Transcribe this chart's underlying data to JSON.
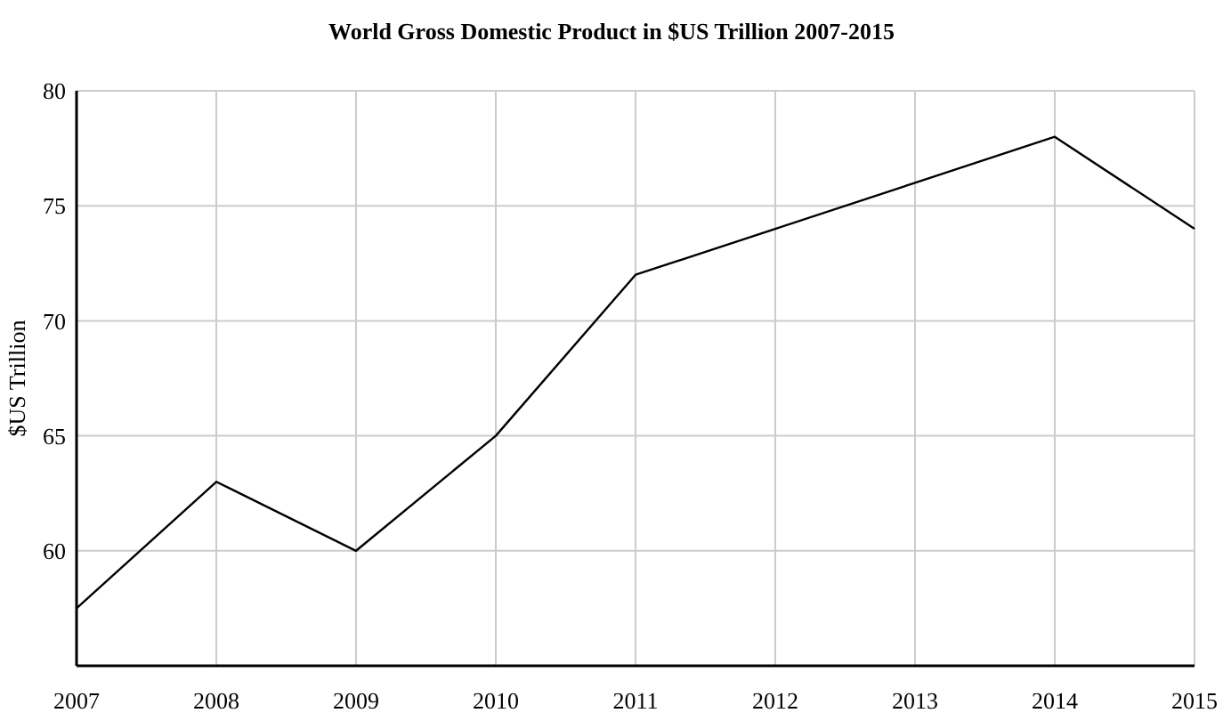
{
  "chart_data": {
    "type": "line",
    "title": "World Gross Domestic Product in $US Trillion 2007-2015",
    "ylabel": "$US Trillion",
    "x": [
      2007,
      2008,
      2009,
      2010,
      2011,
      2012,
      2013,
      2014,
      2015
    ],
    "series": [
      {
        "color": "#000000",
        "values": [
          57.5,
          63,
          60,
          65,
          72,
          74,
          76,
          78,
          74
        ]
      }
    ],
    "xlim": [
      2007,
      2015
    ],
    "xticks": [
      2007,
      2008,
      2009,
      2010,
      2011,
      2012,
      2013,
      2014,
      2015
    ],
    "ylim": [
      55,
      80
    ],
    "yticks": [
      {
        "value": 55,
        "label": null
      },
      60,
      65,
      70,
      75,
      80
    ],
    "grid": true,
    "marker": "none",
    "line_style": "solid"
  }
}
